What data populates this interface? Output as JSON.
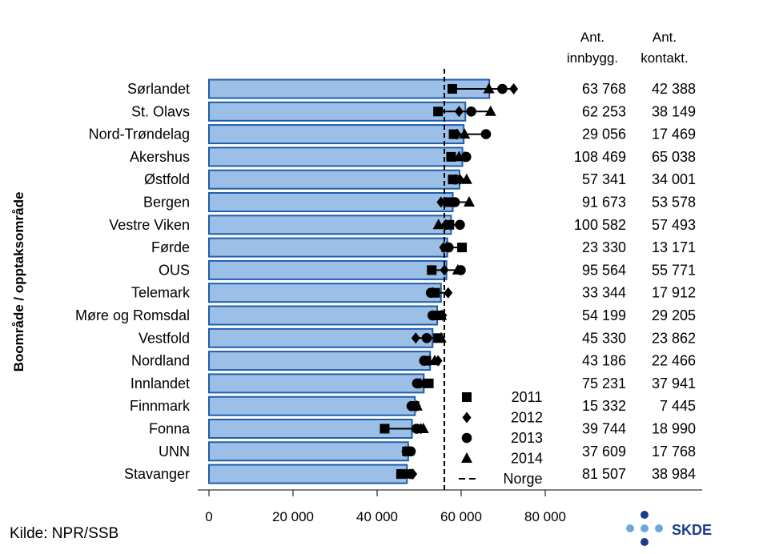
{
  "colors": {
    "bar_fill": "#9bbfe6",
    "bar_stroke": "#1f5ea8",
    "marker": "#000000",
    "logo_blue": "#1a3a8c",
    "logo_light": "#6aa9e0",
    "logo_text": "#1a3a8c"
  },
  "chart_data": {
    "type": "bar",
    "orientation": "horizontal",
    "ylabel": "Boområde / opptaksområde",
    "xlim": [
      0,
      80000
    ],
    "x_ticks": [
      0,
      20000,
      40000,
      60000,
      80000
    ],
    "x_tick_labels": [
      "0",
      "20 000",
      "40 000",
      "60 000",
      "80 000"
    ],
    "reference_line": {
      "name": "Norge",
      "value": 56000,
      "style": "dashed"
    },
    "categories": [
      "Sørlandet",
      "St. Olavs",
      "Nord-Trøndelag",
      "Akershus",
      "Østfold",
      "Bergen",
      "Vestre Viken",
      "Førde",
      "OUS",
      "Telemark",
      "Møre og Romsdal",
      "Vestfold",
      "Nordland",
      "Innlandet",
      "Finnmark",
      "Fonna",
      "UNN",
      "Stavanger"
    ],
    "values": [
      66700,
      61000,
      60600,
      60300,
      59600,
      58000,
      57600,
      56700,
      56500,
      55200,
      54300,
      53200,
      52600,
      51100,
      49000,
      48300,
      47400,
      47100
    ],
    "year_series": [
      {
        "name": "2011",
        "marker": "square",
        "values": [
          57900,
          54500,
          58200,
          57600,
          58000,
          56900,
          57200,
          60200,
          53000,
          53800,
          54200,
          54500,
          51700,
          52300,
          48900,
          41800,
          47100,
          45700
        ]
      },
      {
        "name": "2012",
        "marker": "diamond",
        "values": [
          72500,
          59500,
          59000,
          60800,
          59700,
          55200,
          56300,
          55800,
          56000,
          56900,
          55600,
          49200,
          54500,
          50200,
          49400,
          50400,
          46800,
          48500
        ]
      },
      {
        "name": "2013",
        "marker": "circle",
        "values": [
          69800,
          62400,
          65900,
          61200,
          58600,
          58500,
          59700,
          57000,
          59900,
          52800,
          53200,
          51800,
          51200,
          49500,
          48200,
          49400,
          48000,
          48000
        ]
      },
      {
        "name": "2014",
        "marker": "triangle",
        "values": [
          66600,
          67000,
          60800,
          59500,
          61300,
          61900,
          54600,
          56500,
          59200,
          53300,
          55300,
          55200,
          53700,
          51100,
          49500,
          51000,
          47500,
          47100
        ]
      }
    ],
    "table_headers": [
      [
        "Ant.",
        "innbygg."
      ],
      [
        "Ant.",
        "kontakt."
      ]
    ],
    "innbyggere": [
      "63 768",
      "62 253",
      "29 056",
      "108 469",
      "57 341",
      "91 673",
      "100 582",
      "23 330",
      "95 564",
      "33 344",
      "54 199",
      "45 330",
      "43 186",
      "75 231",
      "15 332",
      "39 744",
      "37 609",
      "81 507"
    ],
    "kontakter": [
      "42 388",
      "38 149",
      "17 469",
      "65 038",
      "34 001",
      "53 578",
      "57 493",
      "13 171",
      "55 771",
      "17 912",
      "29 205",
      "23 862",
      "22 466",
      "37 941",
      "7 445",
      "18 990",
      "17 768",
      "38 984"
    ],
    "legend_placement": "bottom-right-inside"
  },
  "footer": {
    "source": "Kilde: NPR/SSB",
    "logo_text": "SKDE"
  }
}
